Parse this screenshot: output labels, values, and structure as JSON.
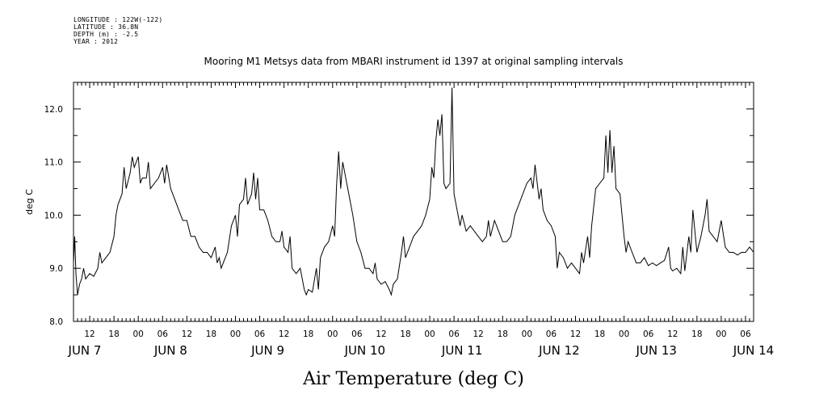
{
  "header": {
    "longitude": "LONGITUDE : 122W(-122)",
    "latitude": "LATITUDE : 36.8N",
    "depth": "DEPTH (m) : -2.5",
    "year": "YEAR : 2012"
  },
  "chart_data": {
    "type": "line",
    "title": "Mooring M1 Metsys data from MBARI instrument id 1397 at original sampling intervals",
    "xlabel": "Air Temperature (deg C)",
    "ylabel": "deg C",
    "ylim": [
      8.0,
      12.5
    ],
    "xlim_hours": [
      8,
      176
    ],
    "y_ticks": [
      "8.0",
      "9.0",
      "10.0",
      "11.0",
      "12.0"
    ],
    "x_hour_ticks": [
      "12",
      "18",
      "00",
      "06",
      "12",
      "18",
      "00",
      "06",
      "12",
      "18",
      "00",
      "06",
      "12",
      "18",
      "00",
      "06",
      "12",
      "18",
      "00",
      "06",
      "12",
      "18",
      "00",
      "06",
      "12",
      "18",
      "00",
      "06"
    ],
    "x_day_labels": [
      "JUN  7",
      "JUN  8",
      "JUN  9",
      "JUN 10",
      "JUN 11",
      "JUN 12",
      "JUN 13",
      "JUN 14"
    ],
    "grid": false,
    "series": [
      {
        "color": "#000000",
        "points": [
          [
            8.0,
            9.1
          ],
          [
            8.3,
            9.6
          ],
          [
            8.6,
            8.9
          ],
          [
            9,
            8.5
          ],
          [
            9.5,
            8.7
          ],
          [
            10,
            8.8
          ],
          [
            10.5,
            9.0
          ],
          [
            11,
            8.8
          ],
          [
            12,
            8.9
          ],
          [
            13,
            8.85
          ],
          [
            14,
            9.0
          ],
          [
            14.5,
            9.3
          ],
          [
            15,
            9.1
          ],
          [
            16,
            9.2
          ],
          [
            17,
            9.3
          ],
          [
            18,
            9.6
          ],
          [
            18.5,
            10.0
          ],
          [
            19,
            10.2
          ],
          [
            20,
            10.4
          ],
          [
            20.5,
            10.9
          ],
          [
            21,
            10.5
          ],
          [
            22,
            10.8
          ],
          [
            22.5,
            11.1
          ],
          [
            23,
            10.9
          ],
          [
            24,
            11.1
          ],
          [
            24.5,
            10.6
          ],
          [
            25,
            10.7
          ],
          [
            26,
            10.7
          ],
          [
            26.5,
            11.0
          ],
          [
            27,
            10.5
          ],
          [
            28,
            10.6
          ],
          [
            29,
            10.7
          ],
          [
            30,
            10.9
          ],
          [
            30.5,
            10.6
          ],
          [
            31,
            10.95
          ],
          [
            32,
            10.5
          ],
          [
            33,
            10.3
          ],
          [
            34,
            10.1
          ],
          [
            35,
            9.9
          ],
          [
            36,
            9.9
          ],
          [
            37,
            9.6
          ],
          [
            38,
            9.6
          ],
          [
            39,
            9.4
          ],
          [
            40,
            9.3
          ],
          [
            41,
            9.3
          ],
          [
            42,
            9.2
          ],
          [
            43,
            9.4
          ],
          [
            43.5,
            9.1
          ],
          [
            44,
            9.2
          ],
          [
            44.5,
            9.0
          ],
          [
            45,
            9.1
          ],
          [
            46,
            9.3
          ],
          [
            47,
            9.8
          ],
          [
            48,
            10.0
          ],
          [
            48.5,
            9.6
          ],
          [
            49,
            10.2
          ],
          [
            50,
            10.3
          ],
          [
            50.5,
            10.7
          ],
          [
            51,
            10.2
          ],
          [
            52,
            10.4
          ],
          [
            52.5,
            10.8
          ],
          [
            53,
            10.3
          ],
          [
            53.5,
            10.7
          ],
          [
            54,
            10.1
          ],
          [
            55,
            10.1
          ],
          [
            56,
            9.9
          ],
          [
            57,
            9.6
          ],
          [
            58,
            9.5
          ],
          [
            59,
            9.5
          ],
          [
            59.5,
            9.7
          ],
          [
            60,
            9.4
          ],
          [
            61,
            9.3
          ],
          [
            61.5,
            9.6
          ],
          [
            62,
            9.0
          ],
          [
            63,
            8.9
          ],
          [
            64,
            9.0
          ],
          [
            65,
            8.6
          ],
          [
            65.5,
            8.5
          ],
          [
            66,
            8.6
          ],
          [
            67,
            8.55
          ],
          [
            68,
            9.0
          ],
          [
            68.5,
            8.6
          ],
          [
            69,
            9.2
          ],
          [
            70,
            9.4
          ],
          [
            71,
            9.5
          ],
          [
            72,
            9.8
          ],
          [
            72.5,
            9.6
          ],
          [
            73,
            10.6
          ],
          [
            73.5,
            11.2
          ],
          [
            74,
            10.5
          ],
          [
            74.5,
            11.0
          ],
          [
            75,
            10.8
          ],
          [
            76,
            10.4
          ],
          [
            77,
            10.0
          ],
          [
            78,
            9.5
          ],
          [
            79,
            9.3
          ],
          [
            80,
            9.0
          ],
          [
            81,
            9.0
          ],
          [
            82,
            8.9
          ],
          [
            82.5,
            9.1
          ],
          [
            83,
            8.8
          ],
          [
            84,
            8.7
          ],
          [
            85,
            8.75
          ],
          [
            86,
            8.6
          ],
          [
            86.5,
            8.5
          ],
          [
            87,
            8.7
          ],
          [
            88,
            8.8
          ],
          [
            89,
            9.3
          ],
          [
            89.5,
            9.6
          ],
          [
            90,
            9.2
          ],
          [
            91,
            9.4
          ],
          [
            92,
            9.6
          ],
          [
            93,
            9.7
          ],
          [
            94,
            9.8
          ],
          [
            95,
            10.0
          ],
          [
            96,
            10.3
          ],
          [
            96.5,
            10.9
          ],
          [
            97,
            10.7
          ],
          [
            97.5,
            11.4
          ],
          [
            98,
            11.8
          ],
          [
            98.5,
            11.5
          ],
          [
            99,
            11.9
          ],
          [
            99.5,
            10.6
          ],
          [
            100,
            10.5
          ],
          [
            101,
            10.6
          ],
          [
            101.5,
            12.4
          ],
          [
            102,
            10.4
          ],
          [
            103,
            10.0
          ],
          [
            103.5,
            9.8
          ],
          [
            104,
            10.0
          ],
          [
            105,
            9.7
          ],
          [
            106,
            9.8
          ],
          [
            107,
            9.7
          ],
          [
            108,
            9.6
          ],
          [
            109,
            9.5
          ],
          [
            110,
            9.6
          ],
          [
            110.5,
            9.9
          ],
          [
            111,
            9.6
          ],
          [
            112,
            9.9
          ],
          [
            113,
            9.7
          ],
          [
            114,
            9.5
          ],
          [
            115,
            9.5
          ],
          [
            116,
            9.6
          ],
          [
            117,
            10.0
          ],
          [
            118,
            10.2
          ],
          [
            119,
            10.4
          ],
          [
            120,
            10.6
          ],
          [
            121,
            10.7
          ],
          [
            121.5,
            10.5
          ],
          [
            122,
            10.95
          ],
          [
            123,
            10.3
          ],
          [
            123.5,
            10.5
          ],
          [
            124,
            10.1
          ],
          [
            125,
            9.9
          ],
          [
            126,
            9.8
          ],
          [
            127,
            9.6
          ],
          [
            127.5,
            9.0
          ],
          [
            128,
            9.3
          ],
          [
            129,
            9.2
          ],
          [
            130,
            9.0
          ],
          [
            131,
            9.1
          ],
          [
            132,
            9.0
          ],
          [
            133,
            8.9
          ],
          [
            133.5,
            9.3
          ],
          [
            134,
            9.1
          ],
          [
            135,
            9.6
          ],
          [
            135.5,
            9.2
          ],
          [
            136,
            9.8
          ],
          [
            137,
            10.5
          ],
          [
            138,
            10.6
          ],
          [
            139,
            10.7
          ],
          [
            139.5,
            11.5
          ],
          [
            140,
            10.8
          ],
          [
            140.5,
            11.6
          ],
          [
            141,
            10.8
          ],
          [
            141.5,
            11.3
          ],
          [
            142,
            10.5
          ],
          [
            143,
            10.4
          ],
          [
            143.5,
            10.0
          ],
          [
            144,
            9.6
          ],
          [
            144.5,
            9.3
          ],
          [
            145,
            9.5
          ],
          [
            146,
            9.3
          ],
          [
            147,
            9.1
          ],
          [
            148,
            9.1
          ],
          [
            149,
            9.2
          ],
          [
            150,
            9.05
          ],
          [
            151,
            9.1
          ],
          [
            152,
            9.05
          ],
          [
            153,
            9.1
          ],
          [
            154,
            9.15
          ],
          [
            155,
            9.4
          ],
          [
            155.5,
            9.0
          ],
          [
            156,
            8.95
          ],
          [
            157,
            9.0
          ],
          [
            158,
            8.9
          ],
          [
            158.5,
            9.4
          ],
          [
            159,
            8.95
          ],
          [
            160,
            9.6
          ],
          [
            160.5,
            9.3
          ],
          [
            161,
            10.1
          ],
          [
            162,
            9.3
          ],
          [
            163,
            9.6
          ],
          [
            164,
            10.0
          ],
          [
            164.5,
            10.3
          ],
          [
            165,
            9.7
          ],
          [
            166,
            9.6
          ],
          [
            167,
            9.5
          ],
          [
            168,
            9.9
          ],
          [
            169,
            9.4
          ],
          [
            170,
            9.3
          ],
          [
            171,
            9.3
          ],
          [
            172,
            9.25
          ],
          [
            173,
            9.3
          ],
          [
            174,
            9.3
          ],
          [
            175,
            9.4
          ],
          [
            176,
            9.3
          ]
        ]
      }
    ]
  }
}
